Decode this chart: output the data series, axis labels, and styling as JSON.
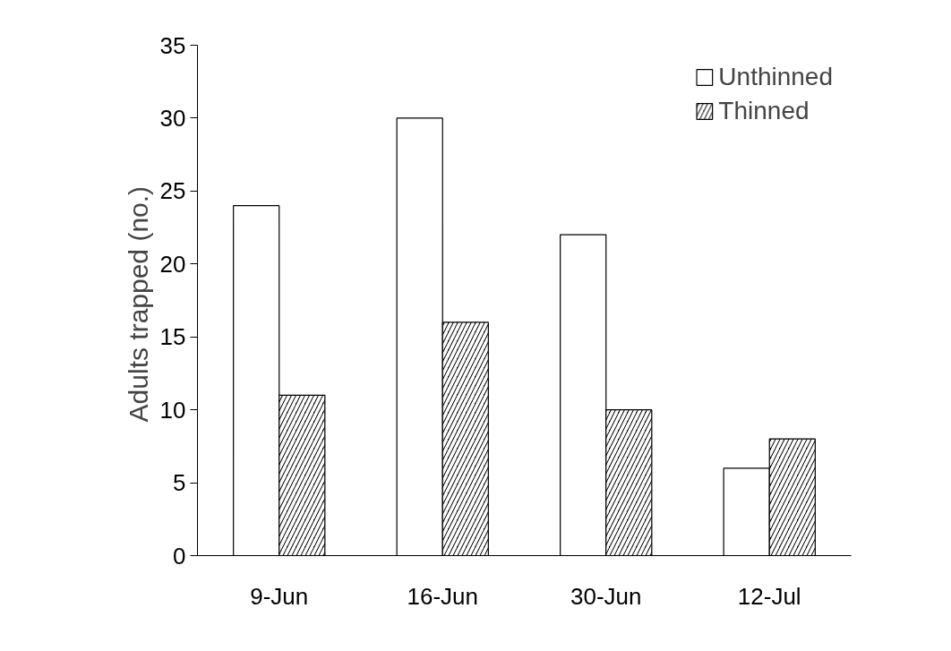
{
  "chart_data": {
    "type": "bar",
    "ylabel": "Adults trapped  (no.)",
    "categories": [
      "9-Jun",
      "16-Jun",
      "30-Jun",
      "12-Jul"
    ],
    "series": [
      {
        "name": "Unthinned",
        "color": "#ffffff",
        "values": [
          24,
          30,
          22,
          6
        ]
      },
      {
        "name": "Thinned",
        "color": "#000000",
        "values": [
          11,
          16,
          10,
          8
        ]
      }
    ],
    "ylim": [
      0,
      35
    ],
    "yticks": [
      0,
      5,
      10,
      15,
      20,
      25,
      30,
      35
    ],
    "grid": false,
    "legend": "top right"
  }
}
